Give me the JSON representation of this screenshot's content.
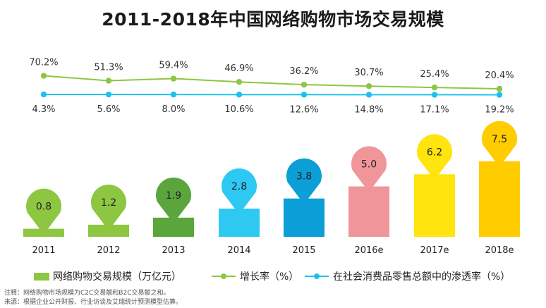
{
  "chart_data": {
    "type": "bar",
    "title": "2011-2018年中国网络购物市场交易规模",
    "categories": [
      "2011",
      "2012",
      "2013",
      "2014",
      "2015",
      "2016e",
      "2017e",
      "2018e"
    ],
    "series": [
      {
        "name": "网络购物交易规模（万亿元）",
        "kind": "bar",
        "values": [
          0.8,
          1.2,
          1.9,
          2.8,
          3.8,
          5.0,
          6.2,
          7.5
        ],
        "value_labels": [
          "0.8",
          "1.2",
          "1.9",
          "2.8",
          "3.8",
          "5.0",
          "6.2",
          "7.5"
        ],
        "colors": [
          "#8dc641",
          "#8dc641",
          "#5aa63c",
          "#2ec9f2",
          "#0c9ed6",
          "#f0969a",
          "#ffe40d",
          "#ffcc00"
        ]
      },
      {
        "name": "增长率（%）",
        "kind": "line",
        "color": "#8dc641",
        "values": [
          70.2,
          51.3,
          59.4,
          46.9,
          36.2,
          30.7,
          25.4,
          20.4
        ],
        "value_labels": [
          "70.2%",
          "51.3%",
          "59.4%",
          "46.9%",
          "36.2%",
          "30.7%",
          "25.4%",
          "20.4%"
        ]
      },
      {
        "name": "在社会消费品零售总额中的渗透率（%）",
        "kind": "line",
        "color": "#1cc2ee",
        "values": [
          4.3,
          5.6,
          8.0,
          10.6,
          12.6,
          14.8,
          17.1,
          19.2
        ],
        "value_labels": [
          "4.3%",
          "5.6%",
          "8.0%",
          "10.6%",
          "12.6%",
          "14.8%",
          "17.1%",
          "19.2%"
        ]
      }
    ]
  },
  "notes": {
    "line1": "注释：网络购物市场规模为C2C交易额和B2C交易额之和。",
    "line2": "来源：根据企业公开财报、行业访谈及艾瑞统计预测模型估算。"
  },
  "colors": {
    "growth": "#8dc641",
    "penetration": "#1cc2ee",
    "bar_legend": "#8dc641"
  }
}
